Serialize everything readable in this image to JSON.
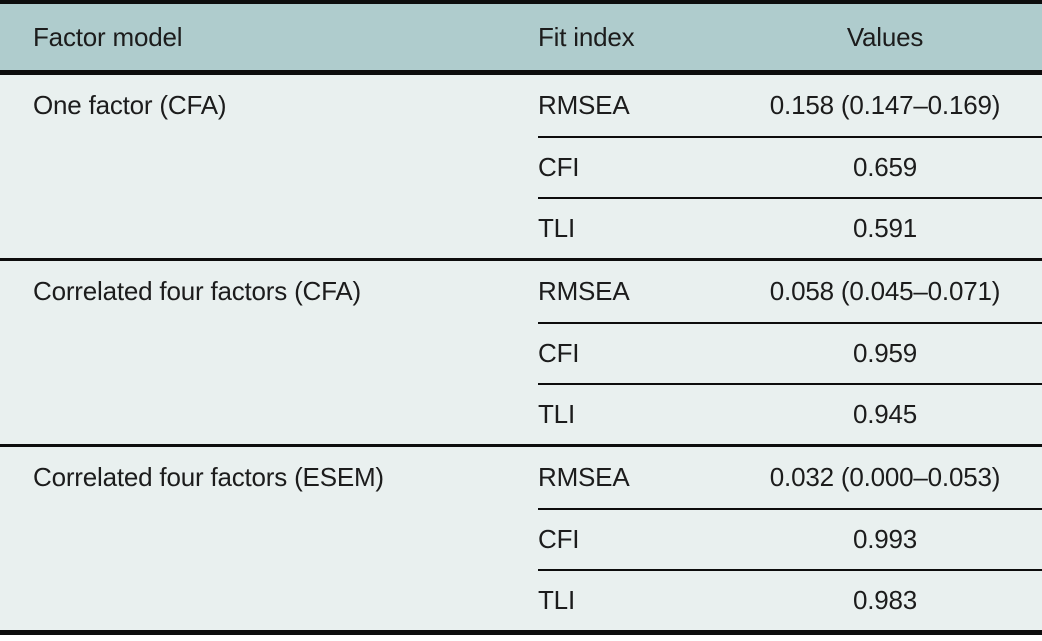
{
  "table": {
    "headers": {
      "factor_model": "Factor model",
      "fit_index": "Fit index",
      "values": "Values"
    },
    "groups": [
      {
        "model": "One factor (CFA)",
        "rows": [
          {
            "fit_index": "RMSEA",
            "value": "0.158 (0.147–0.169)"
          },
          {
            "fit_index": "CFI",
            "value": "0.659"
          },
          {
            "fit_index": "TLI",
            "value": "0.591"
          }
        ]
      },
      {
        "model": "Correlated four factors (CFA)",
        "rows": [
          {
            "fit_index": "RMSEA",
            "value": "0.058 (0.045–0.071)"
          },
          {
            "fit_index": "CFI",
            "value": "0.959"
          },
          {
            "fit_index": "TLI",
            "value": "0.945"
          }
        ]
      },
      {
        "model": "Correlated four factors (ESEM)",
        "rows": [
          {
            "fit_index": "RMSEA",
            "value": "0.032 (0.000–0.053)"
          },
          {
            "fit_index": "CFI",
            "value": "0.993"
          },
          {
            "fit_index": "TLI",
            "value": "0.983"
          }
        ]
      }
    ]
  },
  "colors": {
    "header_bg": "#afcccd",
    "body_bg": "#e9f0ef",
    "rule": "#0d0d0d",
    "text": "#1c1c1c",
    "page_bg": "#ffffff"
  }
}
